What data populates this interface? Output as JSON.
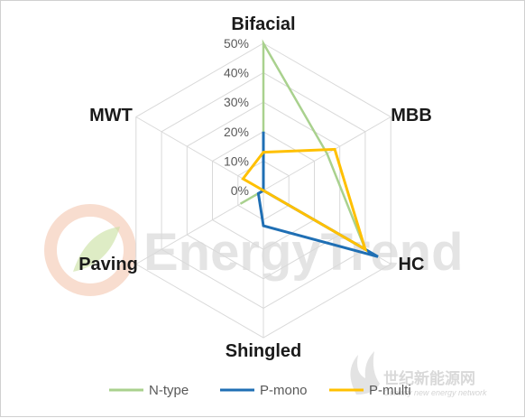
{
  "chart_data": {
    "type": "radar",
    "categories": [
      "Bifacial",
      "MBB",
      "HC",
      "Shingled",
      "Paving",
      "MWT"
    ],
    "ticks": [
      "0%",
      "10%",
      "20%",
      "30%",
      "40%",
      "50%"
    ],
    "rmax": 50,
    "series": [
      {
        "name": "N-type",
        "color": "#a9d18e",
        "values": [
          50,
          25,
          40,
          0,
          9,
          0
        ]
      },
      {
        "name": "P-mono",
        "color": "#1f6fb4",
        "values": [
          20,
          0,
          45,
          12,
          2,
          0
        ]
      },
      {
        "name": "P-multi",
        "color": "#ffc000",
        "values": [
          13,
          28,
          40,
          0,
          0,
          8
        ]
      }
    ],
    "legend_position": "bottom",
    "grid": true
  },
  "watermark": {
    "brand": "EnergyTrend",
    "chinese": "世纪新能源网",
    "english": "Century new energy network"
  }
}
